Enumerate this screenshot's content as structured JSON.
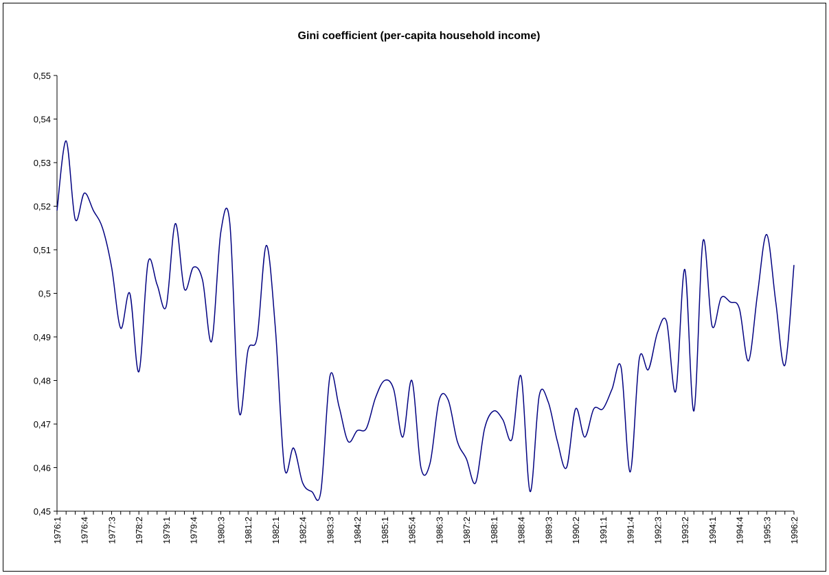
{
  "chart_data": {
    "type": "line",
    "title": "Gini coefficient (per-capita household income)",
    "categories": [
      "1976:1",
      null,
      null,
      "1976:4",
      null,
      null,
      "1977:3",
      null,
      null,
      "1978:2",
      null,
      null,
      "1979:1",
      null,
      null,
      "1979:4",
      null,
      null,
      "1980:3",
      null,
      null,
      "1981:2",
      null,
      null,
      "1982:1",
      null,
      null,
      "1982:4",
      null,
      null,
      "1983:3",
      null,
      null,
      "1984:2",
      null,
      null,
      "1985:1",
      null,
      null,
      "1985:4",
      null,
      null,
      "1986:3",
      null,
      null,
      "1987:2",
      null,
      null,
      "1988:1",
      null,
      null,
      "1988:4",
      null,
      null,
      "1989:3",
      null,
      null,
      "1990:2",
      null,
      null,
      "1991:1",
      null,
      null,
      "1991:4",
      null,
      null,
      "1992:3",
      null,
      null,
      "1993:2",
      null,
      null,
      "1994:1",
      null,
      null,
      "1994:4",
      null,
      null,
      "1995:3",
      null,
      null,
      "1996:2"
    ],
    "values": [
      0.519,
      0.535,
      0.517,
      0.523,
      0.519,
      0.515,
      0.506,
      0.492,
      0.5,
      0.482,
      0.507,
      0.502,
      0.497,
      0.516,
      0.501,
      0.506,
      0.503,
      0.489,
      0.514,
      0.516,
      0.473,
      0.487,
      0.49,
      0.511,
      0.492,
      0.46,
      0.4645,
      0.4565,
      0.4545,
      0.4545,
      0.481,
      0.474,
      0.466,
      0.4685,
      0.469,
      0.476,
      0.48,
      0.478,
      0.467,
      0.48,
      0.46,
      0.461,
      0.4755,
      0.4755,
      0.466,
      0.462,
      0.4565,
      0.469,
      0.473,
      0.471,
      0.4665,
      0.481,
      0.4545,
      0.4765,
      0.475,
      0.466,
      0.46,
      0.4735,
      0.467,
      0.4735,
      0.4735,
      0.478,
      0.483,
      0.459,
      0.485,
      0.4825,
      0.491,
      0.4935,
      0.4775,
      0.5055,
      0.473,
      0.512,
      0.4925,
      0.499,
      0.498,
      0.4965,
      0.4845,
      0.5,
      0.5135,
      0.498,
      0.4835,
      0.5065
    ],
    "color": "#000080",
    "ylim": [
      0.45,
      0.55
    ],
    "yticks": [
      {
        "value": 0.45,
        "label": "0,45"
      },
      {
        "value": 0.46,
        "label": "0,46"
      },
      {
        "value": 0.47,
        "label": "0,47"
      },
      {
        "value": 0.48,
        "label": "0,48"
      },
      {
        "value": 0.49,
        "label": "0,49"
      },
      {
        "value": 0.5,
        "label": "0,5"
      },
      {
        "value": 0.51,
        "label": "0,51"
      },
      {
        "value": 0.52,
        "label": "0,52"
      },
      {
        "value": 0.53,
        "label": "0,53"
      },
      {
        "value": 0.54,
        "label": "0,54"
      },
      {
        "value": 0.55,
        "label": "0,55"
      }
    ],
    "smooth": true
  }
}
